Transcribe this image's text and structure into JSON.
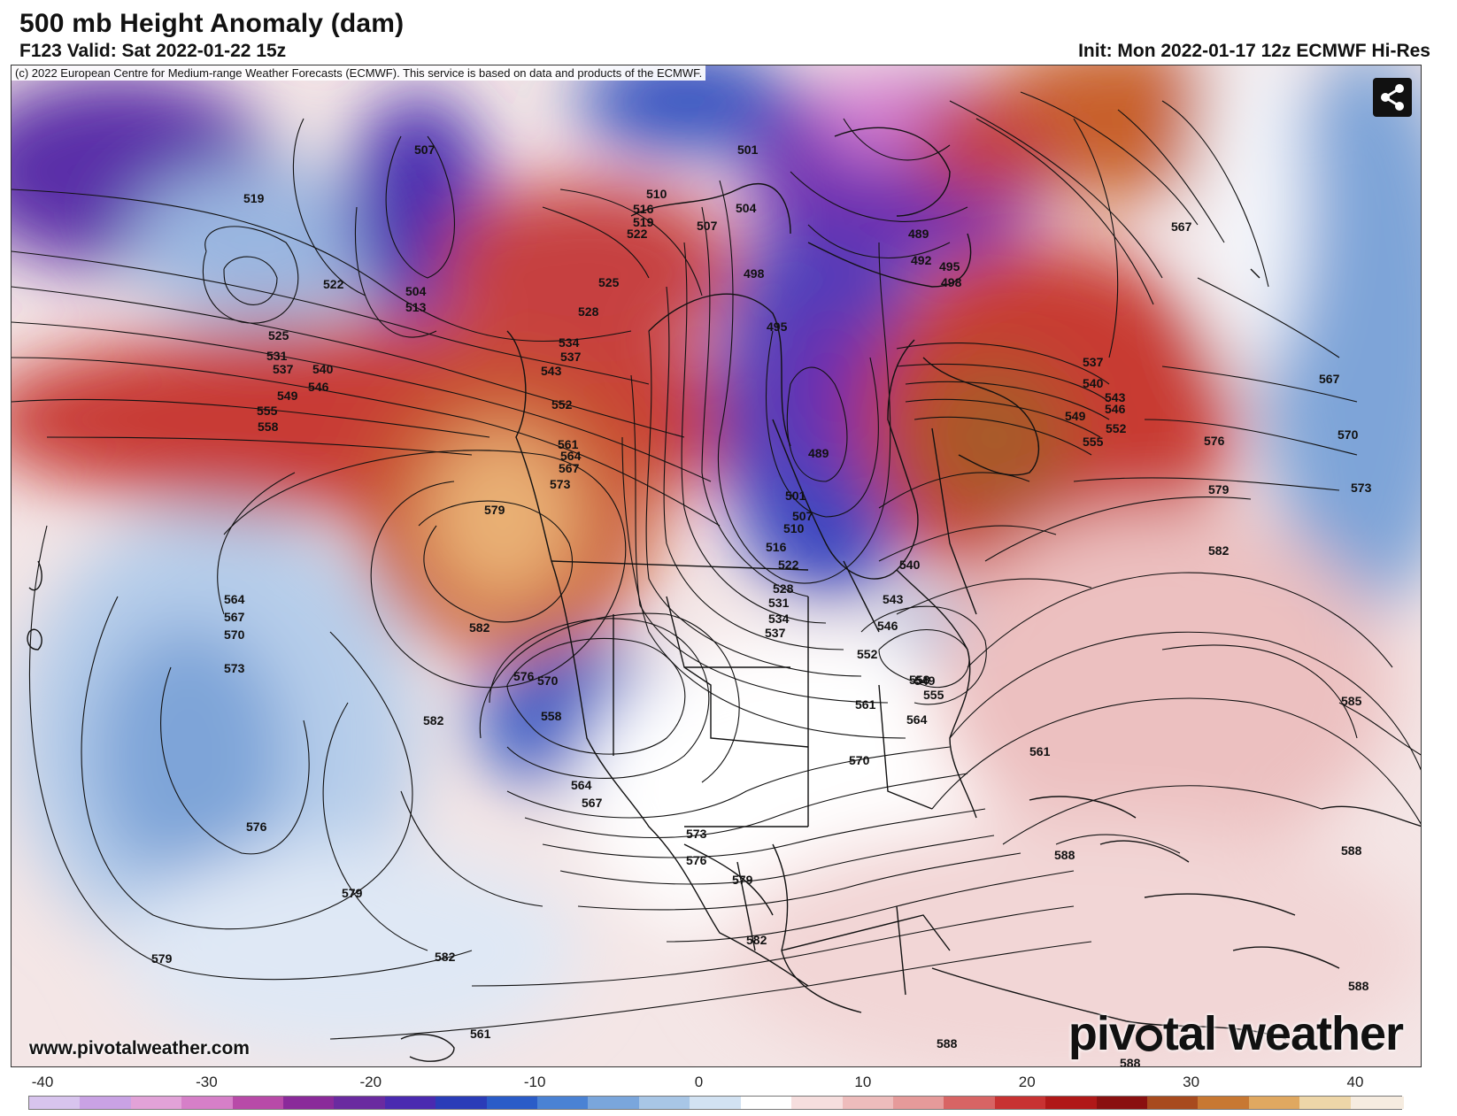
{
  "header": {
    "title": "500 mb Height Anomaly (dam)",
    "valid": "F123 Valid: Sat 2022-01-22 15z",
    "init": "Init: Mon 2022-01-17 12z ECMWF Hi-Res"
  },
  "map": {
    "copyright": "(c) 2022 European Centre for Medium-range Weather Forecasts (ECMWF). This service is based on data and products of the ECMWF.",
    "site_url": "www.pivotalweather.com",
    "brand_pre": "piv",
    "brand_post": "tal weather",
    "share_icon": "share-icon",
    "contour_labels": [
      "507",
      "519",
      "522",
      "525",
      "531",
      "537",
      "540",
      "546",
      "549",
      "555",
      "558",
      "504",
      "513",
      "510",
      "516",
      "519",
      "522",
      "525",
      "528",
      "534",
      "537",
      "543",
      "552",
      "561",
      "564",
      "567",
      "573",
      "579",
      "582",
      "576",
      "570",
      "501",
      "504",
      "507",
      "498",
      "489",
      "492",
      "495",
      "498",
      "495",
      "489",
      "501",
      "507",
      "510",
      "516",
      "522",
      "528",
      "531",
      "534",
      "537",
      "540",
      "543",
      "546",
      "552",
      "549",
      "555",
      "558",
      "561",
      "564",
      "570",
      "573",
      "576",
      "579",
      "582",
      "588",
      "588",
      "588",
      "588",
      "588",
      "537",
      "540",
      "543",
      "546",
      "549",
      "552",
      "555",
      "567",
      "567",
      "570",
      "573",
      "576",
      "579",
      "582",
      "585",
      "561",
      "564",
      "567",
      "570",
      "573",
      "576",
      "579",
      "579",
      "582",
      "582",
      "561",
      "558",
      "564",
      "567"
    ]
  },
  "colorbar": {
    "ticks": [
      "-40",
      "-30",
      "-20",
      "-10",
      "0",
      "10",
      "20",
      "30",
      "40"
    ],
    "tick_values": [
      -40,
      -30,
      -20,
      -10,
      0,
      10,
      20,
      30,
      40
    ],
    "min": -40,
    "max": 40,
    "colors": [
      "#d8c4ee",
      "#c9a2e4",
      "#e2a2d8",
      "#d67fc8",
      "#b84aa8",
      "#8a2a9a",
      "#6a2aa0",
      "#4a2ab0",
      "#2a3cb8",
      "#2a5cc8",
      "#4a82d4",
      "#7aa6dc",
      "#a8c6e6",
      "#d2e2f2",
      "#ffffff",
      "#f6dede",
      "#eebcbc",
      "#e69a9a",
      "#d86464",
      "#c83232",
      "#b01818",
      "#8a1010",
      "#a84a1e",
      "#c87832",
      "#e0a860",
      "#eed6a8",
      "#f6ece0"
    ]
  }
}
